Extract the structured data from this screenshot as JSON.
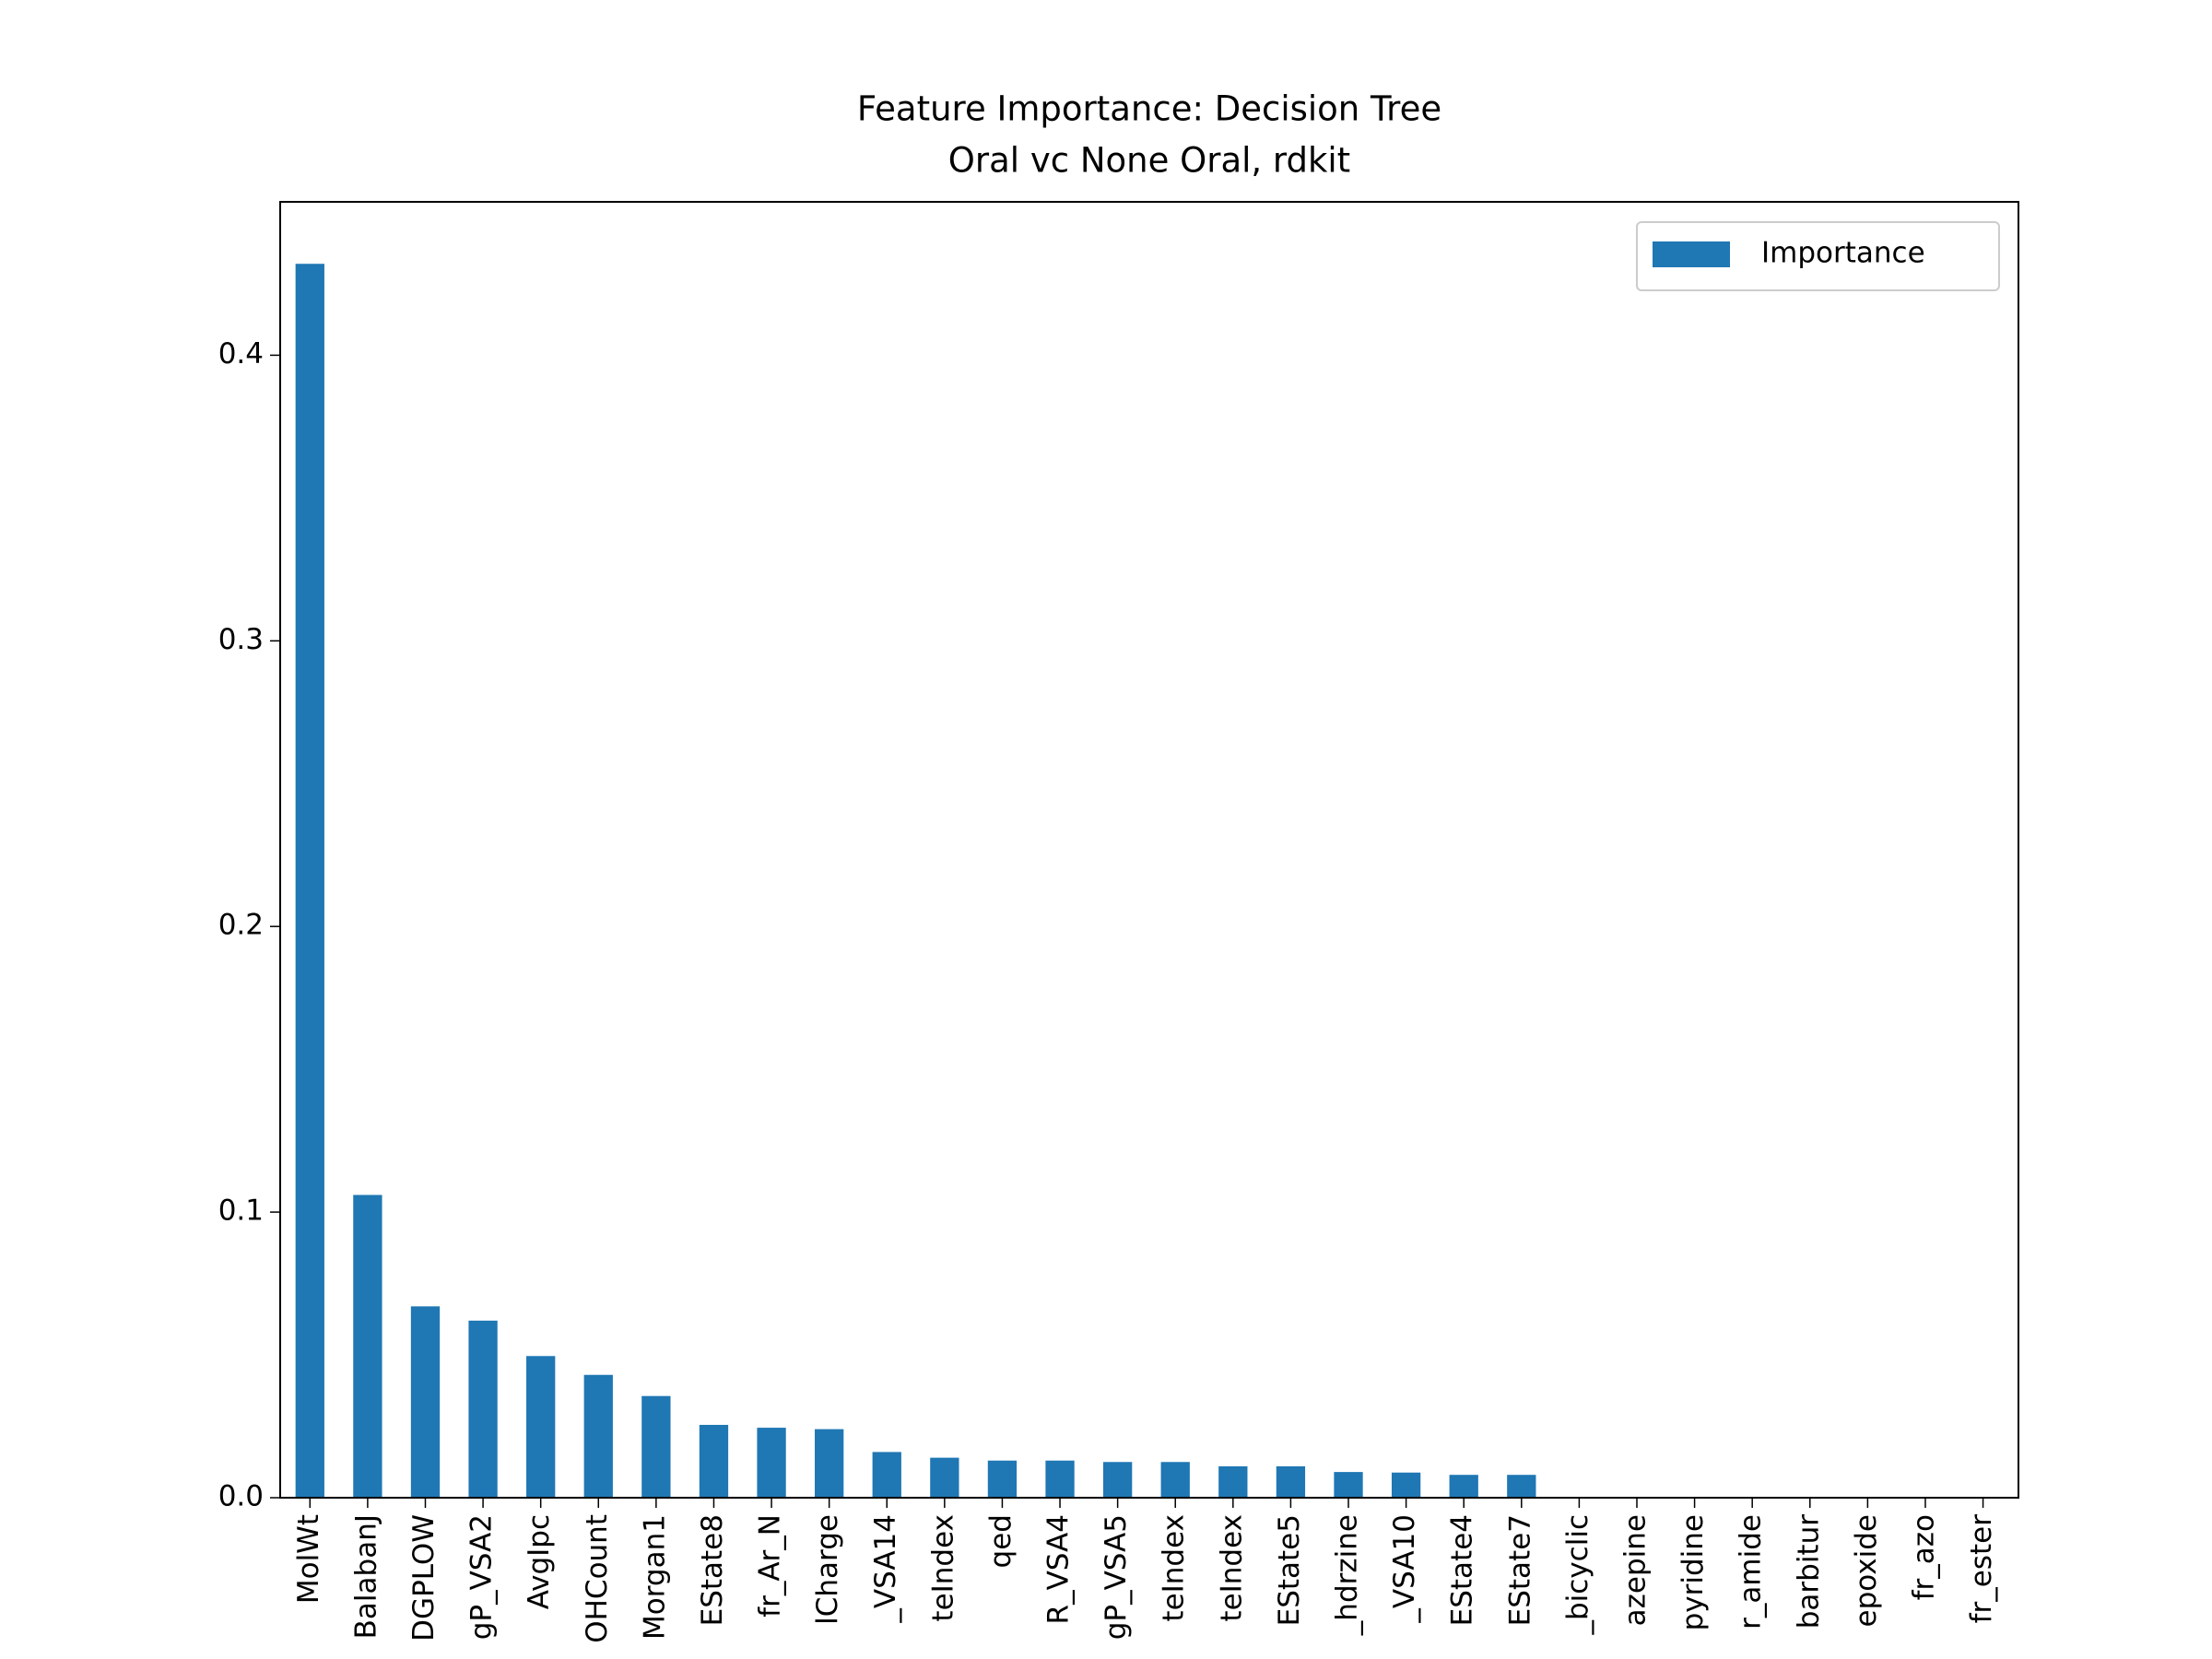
{
  "chart_data": {
    "type": "bar",
    "title": "Feature Importance: Decision Tree",
    "subtitle": "Oral vc None Oral, rdkit",
    "categories": [
      "MolWt",
      "BalabanJ",
      "DGPLOW",
      "gP_VSA2",
      "AvgIpc",
      "OHCount",
      "Morgan1",
      "EState8",
      "fr_Ar_N",
      "lCharge",
      "_VSA14",
      "teIndex",
      "qed",
      "R_VSA4",
      "gP_VSA5",
      "teIndex",
      "teIndex",
      "EState5",
      "_hdrzine",
      "_VSA10",
      "EState4",
      "EState7",
      "_bicyclic",
      "azepine",
      "pyridine",
      "r_amide",
      "barbitur",
      "epoxide",
      "fr_azo",
      "fr_ester"
    ],
    "series": [
      {
        "name": "Importance",
        "color": "#1f77b4",
        "values": [
          0.432,
          0.106,
          0.067,
          0.062,
          0.0496,
          0.043,
          0.0356,
          0.0255,
          0.0245,
          0.024,
          0.016,
          0.014,
          0.013,
          0.013,
          0.0125,
          0.0125,
          0.011,
          0.011,
          0.009,
          0.0088,
          0.008,
          0.008,
          0,
          0,
          0,
          0,
          0,
          0,
          0,
          0
        ]
      }
    ],
    "ylim": [
      0,
      0.4537
    ],
    "yticks": [
      {
        "value": 0,
        "label": "0.0"
      },
      0.1,
      0.2,
      0.3,
      0.4
    ],
    "legend": "upper right",
    "grid": false
  }
}
